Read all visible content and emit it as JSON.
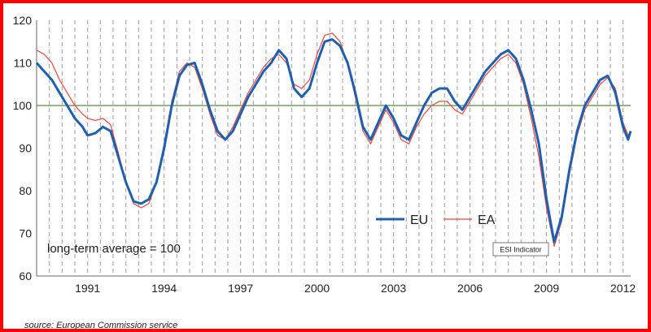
{
  "chart_data": {
    "type": "line",
    "title": "",
    "xlabel": "",
    "ylabel": "",
    "xlim": [
      1989,
      2012.3
    ],
    "ylim": [
      60,
      120
    ],
    "yticks": [
      60,
      70,
      80,
      90,
      100,
      110,
      120
    ],
    "xticks": [
      1991,
      1994,
      1997,
      2000,
      2003,
      2006,
      2009,
      2012
    ],
    "grid": "vertical-dashed",
    "reference_line": {
      "y": 100,
      "color": "#5a8a3c"
    },
    "legend": {
      "position": "bottom-right"
    },
    "annotation_text": "long-term  average = 100",
    "marker_label": {
      "text": "ESI Indicator",
      "x": 2008.8,
      "y": 67
    },
    "source_text": "source: European Commission service",
    "series": [
      {
        "name": "EU",
        "color": "#1f5fb0",
        "points": [
          [
            1989.0,
            110
          ],
          [
            1989.3,
            108
          ],
          [
            1989.6,
            106
          ],
          [
            1989.9,
            103
          ],
          [
            1990.2,
            100
          ],
          [
            1990.5,
            97
          ],
          [
            1990.8,
            95
          ],
          [
            1991.0,
            93
          ],
          [
            1991.3,
            93.5
          ],
          [
            1991.6,
            95
          ],
          [
            1991.9,
            94
          ],
          [
            1992.2,
            88
          ],
          [
            1992.5,
            82
          ],
          [
            1992.8,
            77.5
          ],
          [
            1993.1,
            77
          ],
          [
            1993.4,
            78
          ],
          [
            1993.7,
            82
          ],
          [
            1994.0,
            90
          ],
          [
            1994.3,
            100
          ],
          [
            1994.6,
            107
          ],
          [
            1994.9,
            109.5
          ],
          [
            1995.2,
            110
          ],
          [
            1995.5,
            105
          ],
          [
            1995.8,
            99
          ],
          [
            1996.1,
            94
          ],
          [
            1996.4,
            92
          ],
          [
            1996.7,
            94
          ],
          [
            1997.0,
            98
          ],
          [
            1997.3,
            102
          ],
          [
            1997.6,
            105
          ],
          [
            1997.9,
            108
          ],
          [
            1998.2,
            110
          ],
          [
            1998.5,
            113
          ],
          [
            1998.8,
            111
          ],
          [
            1999.1,
            104
          ],
          [
            1999.4,
            102
          ],
          [
            1999.7,
            104
          ],
          [
            2000.0,
            110
          ],
          [
            2000.3,
            115
          ],
          [
            2000.6,
            115.5
          ],
          [
            2000.9,
            114
          ],
          [
            2001.2,
            110
          ],
          [
            2001.5,
            103
          ],
          [
            2001.8,
            95
          ],
          [
            2002.1,
            92
          ],
          [
            2002.4,
            96
          ],
          [
            2002.7,
            100
          ],
          [
            2003.0,
            97
          ],
          [
            2003.3,
            93
          ],
          [
            2003.6,
            92
          ],
          [
            2003.9,
            96
          ],
          [
            2004.2,
            100
          ],
          [
            2004.5,
            103
          ],
          [
            2004.8,
            104
          ],
          [
            2005.1,
            104
          ],
          [
            2005.4,
            101
          ],
          [
            2005.7,
            99
          ],
          [
            2006.0,
            102
          ],
          [
            2006.3,
            105
          ],
          [
            2006.6,
            108
          ],
          [
            2006.9,
            110
          ],
          [
            2007.2,
            112
          ],
          [
            2007.5,
            113
          ],
          [
            2007.8,
            111
          ],
          [
            2008.1,
            106
          ],
          [
            2008.4,
            99
          ],
          [
            2008.7,
            91
          ],
          [
            2009.0,
            78
          ],
          [
            2009.3,
            68
          ],
          [
            2009.6,
            74
          ],
          [
            2009.9,
            85
          ],
          [
            2010.2,
            94
          ],
          [
            2010.5,
            100
          ],
          [
            2010.8,
            103
          ],
          [
            2011.1,
            106
          ],
          [
            2011.4,
            107
          ],
          [
            2011.7,
            103
          ],
          [
            2012.0,
            95
          ],
          [
            2012.2,
            92
          ],
          [
            2012.3,
            94
          ]
        ]
      },
      {
        "name": "EA",
        "color": "#e8453c",
        "points": [
          [
            1989.0,
            113
          ],
          [
            1989.3,
            112
          ],
          [
            1989.6,
            110
          ],
          [
            1989.9,
            106
          ],
          [
            1990.2,
            103
          ],
          [
            1990.5,
            100
          ],
          [
            1990.8,
            98
          ],
          [
            1991.0,
            97
          ],
          [
            1991.3,
            96.5
          ],
          [
            1991.6,
            97
          ],
          [
            1991.9,
            95.5
          ],
          [
            1992.2,
            89
          ],
          [
            1992.5,
            82
          ],
          [
            1992.8,
            77
          ],
          [
            1993.1,
            76
          ],
          [
            1993.4,
            77
          ],
          [
            1993.7,
            82
          ],
          [
            1994.0,
            91
          ],
          [
            1994.3,
            101
          ],
          [
            1994.6,
            108
          ],
          [
            1994.9,
            110
          ],
          [
            1995.2,
            109
          ],
          [
            1995.5,
            104
          ],
          [
            1995.8,
            98
          ],
          [
            1996.1,
            93
          ],
          [
            1996.4,
            92
          ],
          [
            1996.7,
            95
          ],
          [
            1997.0,
            99
          ],
          [
            1997.3,
            103
          ],
          [
            1997.6,
            106
          ],
          [
            1997.9,
            109
          ],
          [
            1998.2,
            111
          ],
          [
            1998.5,
            112
          ],
          [
            1998.8,
            110
          ],
          [
            1999.1,
            105
          ],
          [
            1999.4,
            104
          ],
          [
            1999.7,
            106
          ],
          [
            2000.0,
            112
          ],
          [
            2000.3,
            116.5
          ],
          [
            2000.6,
            117
          ],
          [
            2000.9,
            115
          ],
          [
            2001.2,
            110
          ],
          [
            2001.5,
            102
          ],
          [
            2001.8,
            94
          ],
          [
            2002.1,
            91
          ],
          [
            2002.4,
            95
          ],
          [
            2002.7,
            99
          ],
          [
            2003.0,
            96
          ],
          [
            2003.3,
            92
          ],
          [
            2003.6,
            91
          ],
          [
            2003.9,
            95
          ],
          [
            2004.2,
            98
          ],
          [
            2004.5,
            100
          ],
          [
            2004.8,
            101
          ],
          [
            2005.1,
            101
          ],
          [
            2005.4,
            99
          ],
          [
            2005.7,
            98
          ],
          [
            2006.0,
            101
          ],
          [
            2006.3,
            104
          ],
          [
            2006.6,
            107
          ],
          [
            2006.9,
            109
          ],
          [
            2007.2,
            111
          ],
          [
            2007.5,
            112
          ],
          [
            2007.8,
            110
          ],
          [
            2008.1,
            105
          ],
          [
            2008.4,
            97
          ],
          [
            2008.7,
            88
          ],
          [
            2009.0,
            76
          ],
          [
            2009.3,
            67
          ],
          [
            2009.6,
            73
          ],
          [
            2009.9,
            84
          ],
          [
            2010.2,
            93
          ],
          [
            2010.5,
            99
          ],
          [
            2010.8,
            102
          ],
          [
            2011.1,
            105
          ],
          [
            2011.4,
            106.5
          ],
          [
            2011.7,
            104
          ],
          [
            2012.0,
            96
          ],
          [
            2012.2,
            93
          ],
          [
            2012.3,
            94
          ]
        ]
      }
    ]
  }
}
